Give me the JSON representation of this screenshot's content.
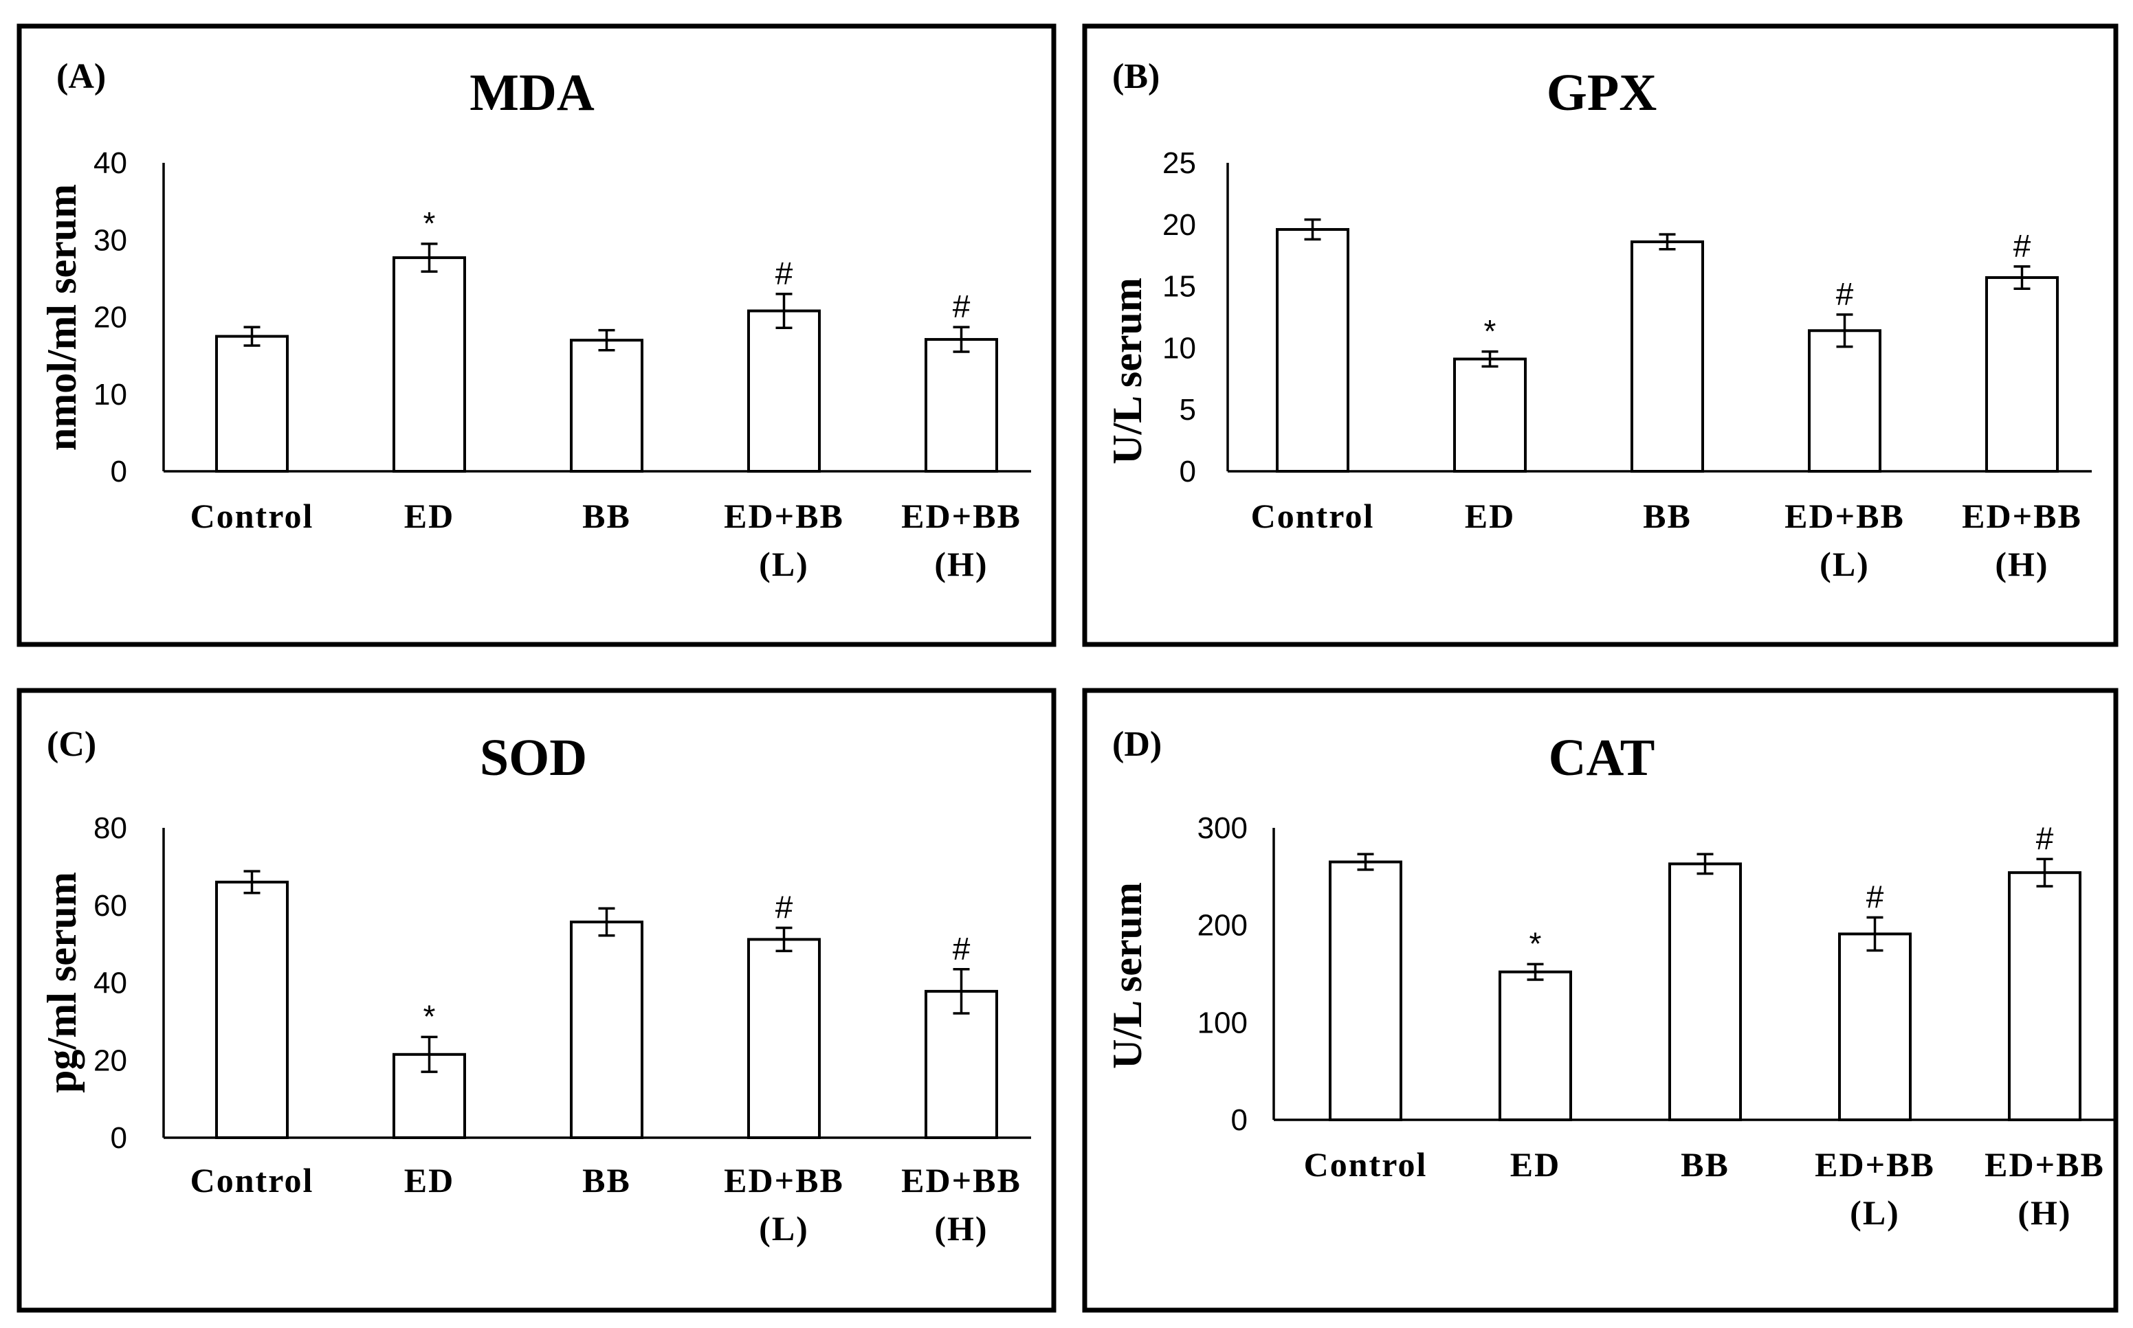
{
  "chart_data": [
    {
      "type": "bar",
      "panel": "(A)",
      "title": "MDA",
      "ylabel": "nmol/ml serum",
      "xlabel": "",
      "ylim": [
        0,
        40
      ],
      "yticks": [
        "0",
        "10",
        "20",
        "30",
        "40"
      ],
      "categories": [
        [
          "Control"
        ],
        [
          "ED"
        ],
        [
          "BB"
        ],
        [
          "ED+BB",
          "(L)"
        ],
        [
          "ED+BB",
          "(H)"
        ]
      ],
      "values": [
        17.5,
        27.7,
        17,
        20.8,
        17.1
      ],
      "errors": [
        1.2,
        1.8,
        1.3,
        2.2,
        1.6
      ],
      "annotations": [
        "",
        "*",
        "",
        "#",
        "#"
      ]
    },
    {
      "type": "bar",
      "panel": "(B)",
      "title": "GPX",
      "ylabel": "U/L serum",
      "xlabel": "",
      "ylim": [
        0,
        25
      ],
      "yticks": [
        "0",
        "5",
        "10",
        "15",
        "20",
        "25"
      ],
      "categories": [
        [
          "Control"
        ],
        [
          "ED"
        ],
        [
          "BB"
        ],
        [
          "ED+BB",
          "(L)"
        ],
        [
          "ED+BB",
          "(H)"
        ]
      ],
      "values": [
        19.6,
        9.1,
        18.6,
        11.4,
        15.7
      ],
      "errors": [
        0.8,
        0.6,
        0.6,
        1.3,
        0.9
      ],
      "annotations": [
        "",
        "*",
        "",
        "#",
        "#"
      ]
    },
    {
      "type": "bar",
      "panel": "(C)",
      "title": "SOD",
      "ylabel": "pg/ml serum",
      "xlabel": "",
      "ylim": [
        0,
        80
      ],
      "yticks": [
        "0",
        "20",
        "40",
        "60",
        "80"
      ],
      "categories": [
        [
          "Control"
        ],
        [
          "ED"
        ],
        [
          "BB"
        ],
        [
          "ED+BB",
          "(L)"
        ],
        [
          "ED+BB",
          "(H)"
        ]
      ],
      "values": [
        66,
        21.5,
        55.7,
        51.2,
        37.8
      ],
      "errors": [
        2.8,
        4.5,
        3.5,
        3,
        5.7
      ],
      "annotations": [
        "",
        "*",
        "",
        "#",
        "#"
      ]
    },
    {
      "type": "bar",
      "panel": "(D)",
      "title": "CAT",
      "ylabel": "U/L serum",
      "xlabel": "",
      "ylim": [
        0,
        300
      ],
      "yticks": [
        "0",
        "100",
        "200",
        "300"
      ],
      "categories": [
        [
          "Control"
        ],
        [
          "ED"
        ],
        [
          "BB"
        ],
        [
          "ED+BB",
          "(L)"
        ],
        [
          "ED+BB",
          "(H)"
        ]
      ],
      "values": [
        265,
        152,
        263,
        191,
        254
      ],
      "errors": [
        8,
        8,
        10,
        17,
        14
      ],
      "annotations": [
        "",
        "*",
        "",
        "#",
        "#"
      ]
    }
  ]
}
